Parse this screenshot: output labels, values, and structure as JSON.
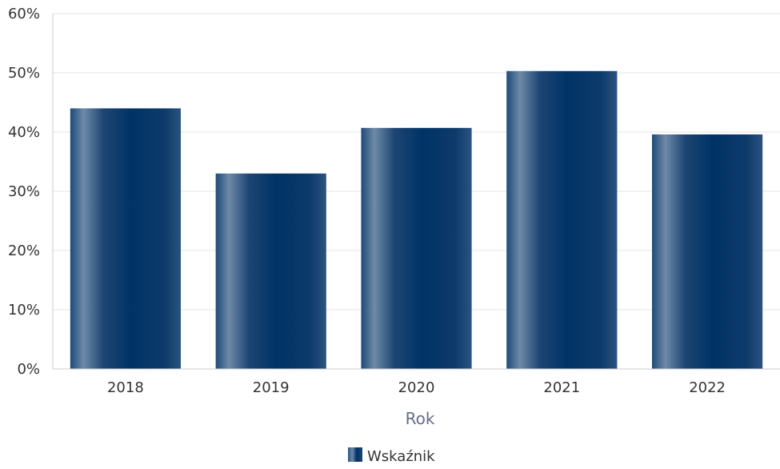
{
  "chart_data": {
    "type": "bar",
    "title": "",
    "xlabel": "Rok",
    "ylabel": "",
    "categories": [
      "2018",
      "2019",
      "2020",
      "2021",
      "2022"
    ],
    "series": [
      {
        "name": "Wskaźnik",
        "values": [
          44,
          33,
          40.7,
          50.3,
          39.6
        ]
      }
    ],
    "ylim": [
      0,
      60
    ],
    "yticks": [
      0,
      10,
      20,
      30,
      40,
      50,
      60
    ],
    "ytick_format": "percent",
    "grid": "horizontal",
    "legend_position": "bottom-center",
    "colors": {
      "bar_dark": "#003366",
      "bar_light": "#6e8aa8",
      "grid": "#e6e6e6",
      "axis": "#cccccc"
    }
  }
}
